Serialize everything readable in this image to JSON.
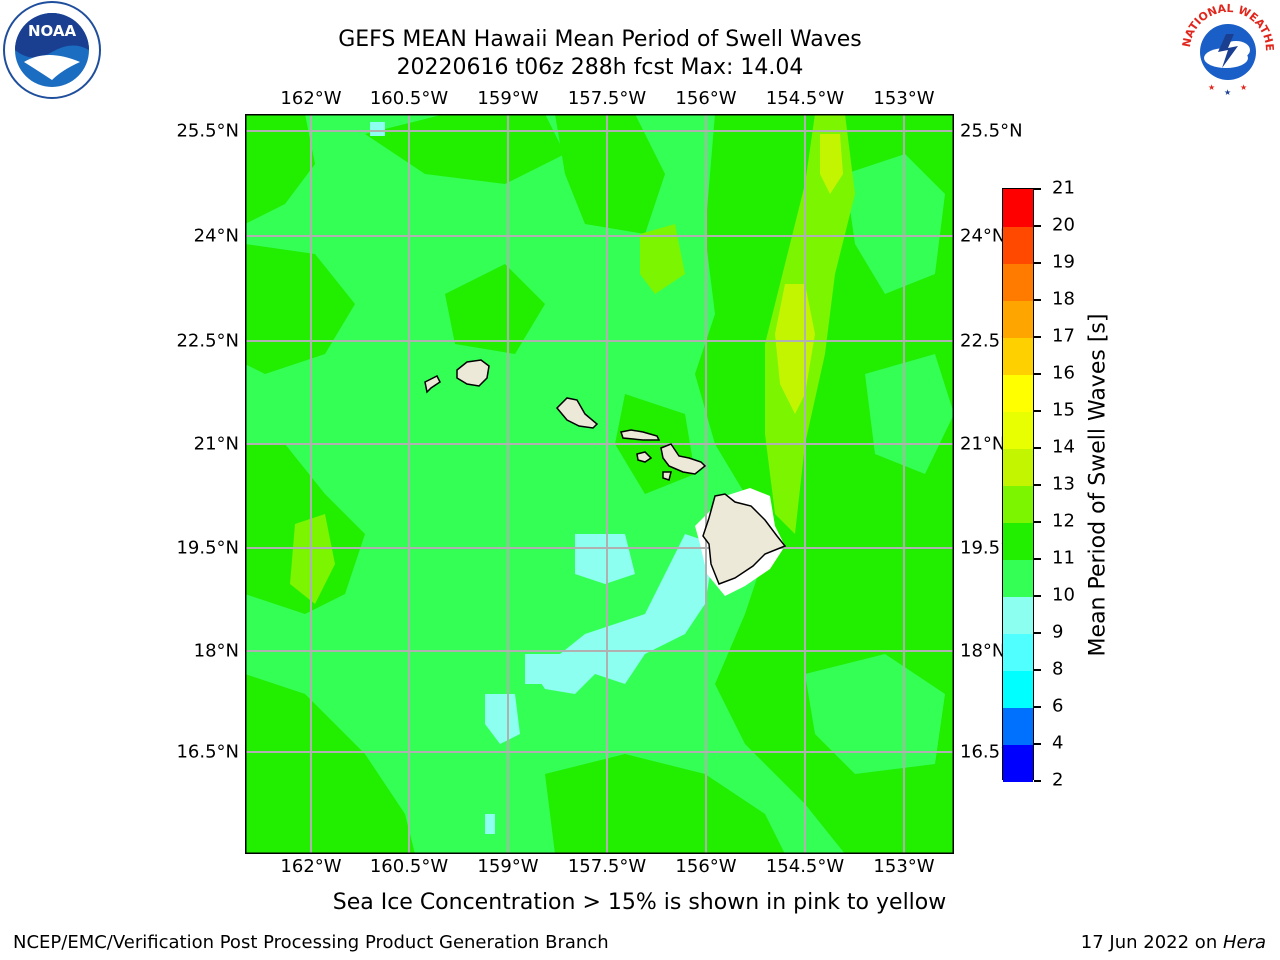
{
  "header": {
    "title_line1": "GEFS MEAN Hawaii Mean Period of Swell Waves",
    "title_line2": "20220616 t06z 288h fcst   Max: 14.04"
  },
  "logos": {
    "left": {
      "name": "noaa-logo",
      "text": "NOAA",
      "ring_text": "NATIONAL OCEANIC AND ATMOSPHERIC ADMINISTRATION · U.S. DEPARTMENT OF COMMERCE"
    },
    "right": {
      "name": "nws-logo",
      "ring_text": "NATIONAL WEATHER SERVICE"
    }
  },
  "map": {
    "lon_labels": [
      "162°W",
      "160.5°W",
      "159°W",
      "157.5°W",
      "156°W",
      "154.5°W",
      "153°W"
    ],
    "lat_labels": [
      "25.5°N",
      "24°N",
      "22.5°N",
      "21°N",
      "19.5°N",
      "18°N",
      "16.5°N"
    ],
    "right_lat_labels": [
      "25.5°N",
      "24°N",
      "22.5°",
      "21°N",
      "19.5°",
      "18°N",
      "16.5°"
    ],
    "grid": true,
    "colors": {
      "grid": "#b0b0b0",
      "land": "#ece9d8",
      "coast": "#000000"
    }
  },
  "colorbar": {
    "label": "Mean Period of Swell Waves [s]",
    "ticks": [
      "2",
      "4",
      "6",
      "8",
      "9",
      "10",
      "11",
      "12",
      "13",
      "14",
      "15",
      "16",
      "17",
      "18",
      "19",
      "20",
      "21"
    ],
    "colors": [
      "#0000ff",
      "#0070ff",
      "#00ffff",
      "#50ffff",
      "#8cfff0",
      "#33ff55",
      "#22ee00",
      "#7cf500",
      "#c4f500",
      "#e7ff00",
      "#ffff00",
      "#ffd000",
      "#ffa500",
      "#ff7b00",
      "#ff4800",
      "#ff0000"
    ]
  },
  "note": "Sea Ice Concentration > 15% is shown in pink to yellow",
  "footer": {
    "left": "NCEP/EMC/Verification Post Processing Product Generation Branch",
    "right_prefix": "17 Jun 2022 on ",
    "right_host": "Hera"
  }
}
